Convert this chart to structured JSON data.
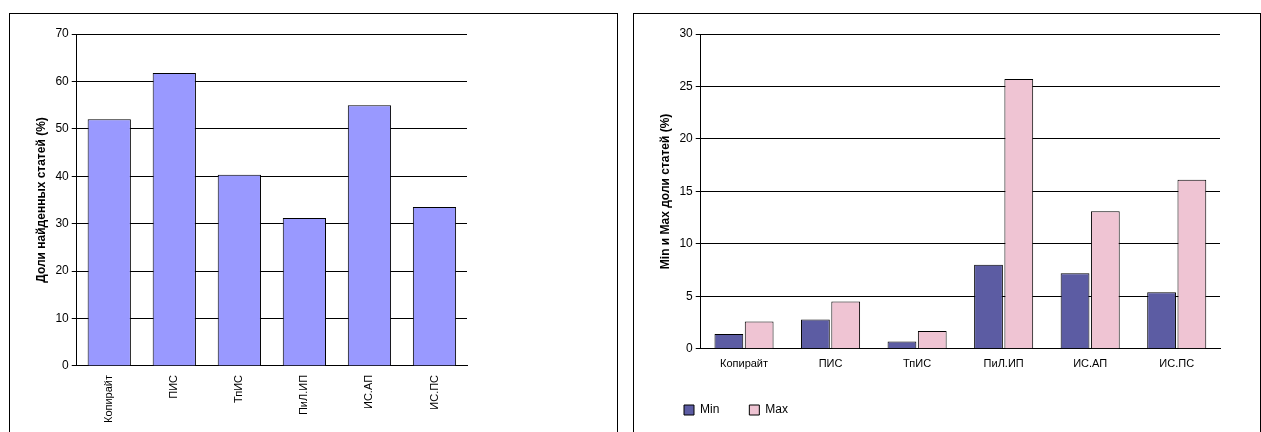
{
  "chart_data": [
    {
      "type": "bar",
      "ylabel": "Доли найденных статей (%)",
      "categories": [
        "Копирайт",
        "ПИС",
        "ТпИС",
        "ПиЛ.ИП",
        "ИС.АП",
        "ИС.ПС"
      ],
      "values": [
        52,
        61.8,
        40.3,
        31.2,
        55,
        33.5
      ],
      "color": "#9999ff",
      "ylim": [
        0,
        70
      ],
      "yticks": [
        0,
        10,
        20,
        30,
        40,
        50,
        60,
        70
      ],
      "grid": "y"
    },
    {
      "type": "bar",
      "ylabel": "Min и Max доли статей (%)",
      "categories": [
        "Копирайт",
        "ПИС",
        "ТпИС",
        "ПиЛ.ИП",
        "ИС.АП",
        "ИС.ПС"
      ],
      "series": [
        {
          "name": "Min",
          "color": "#5c5ca3",
          "values": [
            1.4,
            2.8,
            0.7,
            8.0,
            7.2,
            5.4
          ]
        },
        {
          "name": "Max",
          "color": "#efc4d3",
          "values": [
            2.6,
            4.5,
            1.7,
            25.7,
            13.1,
            16.1
          ]
        }
      ],
      "ylim": [
        0,
        30
      ],
      "yticks": [
        0,
        5,
        10,
        15,
        20,
        25,
        30
      ],
      "grid": "y",
      "legend": "bottom left"
    }
  ]
}
